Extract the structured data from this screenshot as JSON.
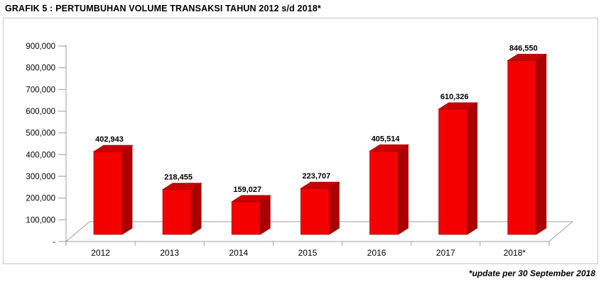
{
  "chart_data": {
    "type": "bar",
    "style": "3d-column",
    "title": "GRAFIK 5 : PERTUMBUHAN VOLUME TRANSAKSI TAHUN 2012 s/d 2018*",
    "footnote": "*update per 30 September 2018",
    "categories": [
      "2012",
      "2013",
      "2014",
      "2015",
      "2016",
      "2017",
      "2018*"
    ],
    "values": [
      402943,
      218455,
      159027,
      223707,
      405514,
      610326,
      846550
    ],
    "value_labels": [
      "402,943",
      "218,455",
      "159,027",
      "223,707",
      "405,514",
      "610,326",
      "846,550"
    ],
    "xlabel": "",
    "ylabel": "",
    "ylim": [
      0,
      900000
    ],
    "y_ticks": [
      {
        "value": 0,
        "label": "-"
      },
      {
        "value": 100000,
        "label": "100,000"
      },
      {
        "value": 200000,
        "label": "200,000"
      },
      {
        "value": 300000,
        "label": "300,000"
      },
      {
        "value": 400000,
        "label": "400,000"
      },
      {
        "value": 500000,
        "label": "500,000"
      },
      {
        "value": 600000,
        "label": "600,000"
      },
      {
        "value": 700000,
        "label": "700,000"
      },
      {
        "value": 800000,
        "label": "800,000"
      },
      {
        "value": 900000,
        "label": "900,000"
      }
    ],
    "grid": false,
    "legend": false,
    "colors": {
      "bar_front": "#F40000",
      "bar_top": "#C90000",
      "bar_side": "#AA0000",
      "bar_edge": "#9C0000",
      "axis": "#9e9e9e",
      "text": "#000000",
      "box_border": "#c6c6c6"
    }
  }
}
